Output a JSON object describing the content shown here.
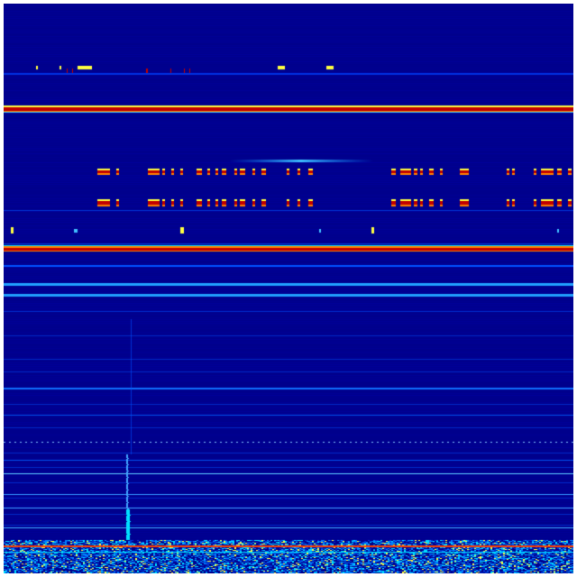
{
  "view": {
    "type": "spectrogram",
    "colormap": "jet",
    "colors": {
      "background": "#00008c",
      "low": "#0000b4",
      "mid": "#0080ff",
      "cyan": "#00e0ff",
      "yellow": "#ffff40",
      "orange": "#ff8000",
      "red": "#c00000"
    }
  }
}
